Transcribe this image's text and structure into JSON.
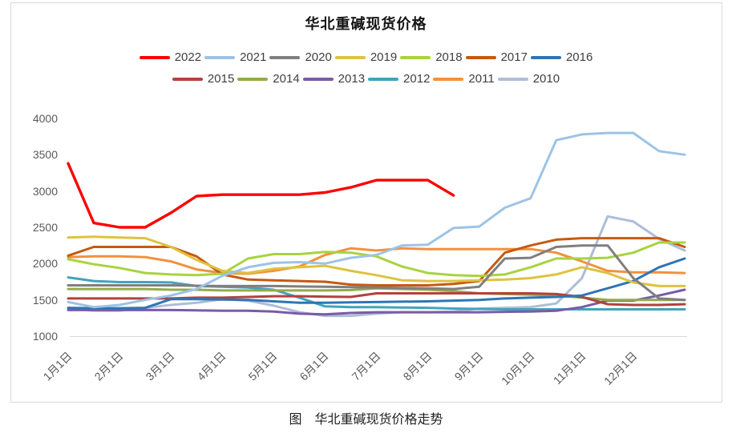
{
  "figure": {
    "title": "华北重碱现货价格",
    "caption": "图　华北重碱现货价格走势"
  },
  "chart_data": {
    "type": "line",
    "title": "华北重碱现货价格",
    "xlabel": "",
    "ylabel": "",
    "grid": false,
    "legend_position": "top-two-rows",
    "legend_rows": [
      7,
      6
    ],
    "y_axis": {
      "min": 1000,
      "max": 4000,
      "ticks": [
        4000,
        3500,
        3000,
        2500,
        2000,
        1500,
        1000
      ]
    },
    "x_axis": {
      "tick_labels": [
        "1月1日",
        "2月1日",
        "3月1日",
        "4月1日",
        "5月1日",
        "6月1日",
        "7月1日",
        "8月1日",
        "9月1日",
        "10月1日",
        "11月1日",
        "12月1日"
      ],
      "tick_months": [
        1,
        2,
        3,
        4,
        5,
        6,
        7,
        8,
        9,
        10,
        11,
        12
      ]
    },
    "x_months": [
      1,
      1.5,
      2,
      2.5,
      3,
      3.5,
      4,
      4.5,
      5,
      5.5,
      6,
      6.5,
      7,
      7.5,
      8,
      8.5,
      9,
      9.5,
      10,
      10.5,
      11,
      11.5,
      12,
      12.5,
      13
    ],
    "series": [
      {
        "name": "2022",
        "color": "#ff0000",
        "values": [
          3380,
          2560,
          2500,
          2500,
          2700,
          2930,
          2950,
          2950,
          2950,
          2950,
          2980,
          3050,
          3150,
          3150,
          3150,
          2940,
          null,
          null,
          null,
          null,
          null,
          null,
          null,
          null,
          null
        ]
      },
      {
        "name": "2021",
        "color": "#9dc3e6",
        "values": [
          1470,
          1400,
          1430,
          1500,
          1560,
          1650,
          1830,
          1950,
          2010,
          2020,
          2000,
          2080,
          2120,
          2250,
          2260,
          2490,
          2510,
          2770,
          2900,
          3700,
          3780,
          3800,
          3800,
          3550,
          3500
        ]
      },
      {
        "name": "2020",
        "color": "#7f7f7f",
        "values": [
          1700,
          1700,
          1700,
          1700,
          1700,
          1695,
          1690,
          1690,
          1690,
          1685,
          1680,
          1675,
          1670,
          1665,
          1660,
          1650,
          1680,
          2070,
          2080,
          2230,
          2250,
          2250,
          1800,
          1520,
          1500
        ]
      },
      {
        "name": "2019",
        "color": "#dfc240",
        "values": [
          2360,
          2370,
          2360,
          2350,
          2230,
          2050,
          1900,
          1870,
          1930,
          1950,
          1970,
          1900,
          1840,
          1770,
          1760,
          1760,
          1770,
          1780,
          1800,
          1850,
          1950,
          1870,
          1740,
          1690,
          1690
        ]
      },
      {
        "name": "2018",
        "color": "#a8d33f",
        "values": [
          2060,
          1990,
          1940,
          1870,
          1850,
          1840,
          1860,
          2070,
          2130,
          2130,
          2160,
          2150,
          2100,
          1960,
          1870,
          1840,
          1830,
          1850,
          1950,
          2070,
          2070,
          2080,
          2150,
          2290,
          2290
        ]
      },
      {
        "name": "2017",
        "color": "#c55a11",
        "values": [
          2110,
          2230,
          2230,
          2230,
          2230,
          2100,
          1850,
          1780,
          1770,
          1760,
          1750,
          1710,
          1700,
          1700,
          1700,
          1720,
          1760,
          2150,
          2250,
          2330,
          2350,
          2350,
          2350,
          2350,
          2230
        ]
      },
      {
        "name": "2016",
        "color": "#2e75b6",
        "values": [
          1390,
          1385,
          1385,
          1390,
          1510,
          1510,
          1505,
          1500,
          1480,
          1460,
          1460,
          1465,
          1470,
          1475,
          1480,
          1490,
          1500,
          1520,
          1530,
          1540,
          1560,
          1660,
          1760,
          1950,
          2070
        ]
      },
      {
        "name": "2015",
        "color": "#b2423e",
        "values": [
          1520,
          1520,
          1520,
          1520,
          1520,
          1530,
          1530,
          1540,
          1550,
          1550,
          1545,
          1540,
          1590,
          1590,
          1590,
          1590,
          1590,
          1590,
          1590,
          1580,
          1540,
          1440,
          1430,
          1430,
          1440
        ]
      },
      {
        "name": "2014",
        "color": "#93ac4b",
        "values": [
          1650,
          1650,
          1650,
          1650,
          1640,
          1640,
          1630,
          1630,
          1630,
          1630,
          1630,
          1635,
          1660,
          1650,
          1640,
          1620,
          1590,
          1580,
          1570,
          1560,
          1530,
          1500,
          1500,
          1500,
          1500
        ]
      },
      {
        "name": "2013",
        "color": "#7a5ba5",
        "values": [
          1360,
          1360,
          1360,
          1360,
          1360,
          1355,
          1350,
          1350,
          1340,
          1310,
          1300,
          1320,
          1330,
          1330,
          1330,
          1330,
          1330,
          1335,
          1340,
          1350,
          1400,
          1490,
          1490,
          1560,
          1640
        ]
      },
      {
        "name": "2012",
        "color": "#42a3bc",
        "values": [
          1810,
          1760,
          1745,
          1745,
          1740,
          1690,
          1680,
          1670,
          1640,
          1530,
          1410,
          1400,
          1400,
          1395,
          1390,
          1380,
          1375,
          1370,
          1370,
          1370,
          1370,
          1370,
          1370,
          1370,
          1370
        ]
      },
      {
        "name": "2011",
        "color": "#f2913d",
        "values": [
          2090,
          2100,
          2100,
          2090,
          2030,
          1920,
          1870,
          1860,
          1900,
          1960,
          2120,
          2210,
          2180,
          2210,
          2200,
          2200,
          2200,
          2200,
          2200,
          2150,
          2030,
          1900,
          1880,
          1880,
          1870
        ]
      },
      {
        "name": "2010",
        "color": "#aebdd8",
        "values": [
          1380,
          1350,
          1350,
          1390,
          1430,
          1460,
          1510,
          1490,
          1420,
          1330,
          1280,
          1280,
          1310,
          1330,
          1330,
          1340,
          1380,
          1390,
          1400,
          1450,
          1800,
          2650,
          2580,
          2340,
          2180
        ]
      }
    ]
  }
}
